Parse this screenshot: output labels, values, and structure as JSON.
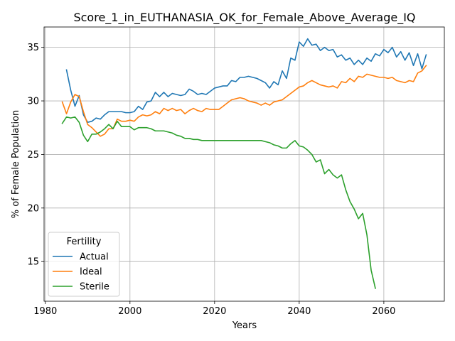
{
  "chart_data": {
    "type": "line",
    "title": "Score_1_in_EUTHANASIA_OK_for_Female_Above_Average_IQ",
    "xlabel": "Years",
    "ylabel": "% of Female Population",
    "xlim": [
      1979.7,
      2074.3
    ],
    "ylim": [
      11.3,
      36.9
    ],
    "x_ticks": [
      1980,
      2000,
      2020,
      2040,
      2060
    ],
    "y_ticks": [
      15,
      20,
      25,
      30,
      35
    ],
    "grid": true,
    "legend": {
      "title": "Fertility",
      "position": "lower-left"
    },
    "series": [
      {
        "name": "Actual",
        "color": "#1f77b4",
        "points": [
          [
            1985,
            32.9
          ],
          [
            1986,
            31.0
          ],
          [
            1987,
            29.5
          ],
          [
            1988,
            30.5
          ],
          [
            1989,
            28.7
          ],
          [
            1990,
            28.0
          ],
          [
            1991,
            28.1
          ],
          [
            1992,
            28.4
          ],
          [
            1993,
            28.3
          ],
          [
            1994,
            28.7
          ],
          [
            1995,
            29.0
          ],
          [
            1996,
            29.0
          ],
          [
            1997,
            29.0
          ],
          [
            1998,
            29.0
          ],
          [
            1999,
            28.9
          ],
          [
            2000,
            28.9
          ],
          [
            2001,
            29.0
          ],
          [
            2002,
            29.5
          ],
          [
            2003,
            29.2
          ],
          [
            2004,
            29.9
          ],
          [
            2005,
            30.0
          ],
          [
            2006,
            30.8
          ],
          [
            2007,
            30.4
          ],
          [
            2008,
            30.8
          ],
          [
            2009,
            30.4
          ],
          [
            2010,
            30.7
          ],
          [
            2011,
            30.6
          ],
          [
            2012,
            30.5
          ],
          [
            2013,
            30.6
          ],
          [
            2014,
            31.1
          ],
          [
            2015,
            30.9
          ],
          [
            2016,
            30.6
          ],
          [
            2017,
            30.7
          ],
          [
            2018,
            30.6
          ],
          [
            2019,
            30.9
          ],
          [
            2020,
            31.2
          ],
          [
            2021,
            31.3
          ],
          [
            2022,
            31.4
          ],
          [
            2023,
            31.4
          ],
          [
            2024,
            31.9
          ],
          [
            2025,
            31.8
          ],
          [
            2026,
            32.2
          ],
          [
            2027,
            32.2
          ],
          [
            2028,
            32.3
          ],
          [
            2029,
            32.2
          ],
          [
            2030,
            32.1
          ],
          [
            2031,
            31.9
          ],
          [
            2032,
            31.7
          ],
          [
            2033,
            31.2
          ],
          [
            2034,
            31.8
          ],
          [
            2035,
            31.5
          ],
          [
            2036,
            32.8
          ],
          [
            2037,
            32.1
          ],
          [
            2038,
            34.0
          ],
          [
            2039,
            33.8
          ],
          [
            2040,
            35.5
          ],
          [
            2041,
            35.1
          ],
          [
            2042,
            35.8
          ],
          [
            2043,
            35.2
          ],
          [
            2044,
            35.3
          ],
          [
            2045,
            34.7
          ],
          [
            2046,
            35.0
          ],
          [
            2047,
            34.7
          ],
          [
            2048,
            34.8
          ],
          [
            2049,
            34.1
          ],
          [
            2050,
            34.3
          ],
          [
            2051,
            33.8
          ],
          [
            2052,
            34.0
          ],
          [
            2053,
            33.4
          ],
          [
            2054,
            33.8
          ],
          [
            2055,
            33.4
          ],
          [
            2056,
            34.0
          ],
          [
            2057,
            33.7
          ],
          [
            2058,
            34.4
          ],
          [
            2059,
            34.2
          ],
          [
            2060,
            34.8
          ],
          [
            2061,
            34.5
          ],
          [
            2062,
            35.0
          ],
          [
            2063,
            34.1
          ],
          [
            2064,
            34.6
          ],
          [
            2065,
            33.8
          ],
          [
            2066,
            34.5
          ],
          [
            2067,
            33.3
          ],
          [
            2068,
            34.4
          ],
          [
            2069,
            33.0
          ],
          [
            2070,
            34.3
          ]
        ]
      },
      {
        "name": "Ideal",
        "color": "#ff7f0e",
        "points": [
          [
            1984,
            29.9
          ],
          [
            1985,
            28.8
          ],
          [
            1986,
            29.9
          ],
          [
            1987,
            30.6
          ],
          [
            1988,
            30.4
          ],
          [
            1989,
            29.0
          ],
          [
            1990,
            27.8
          ],
          [
            1991,
            27.5
          ],
          [
            1992,
            27.1
          ],
          [
            1993,
            26.7
          ],
          [
            1994,
            26.9
          ],
          [
            1995,
            27.4
          ],
          [
            1996,
            27.4
          ],
          [
            1997,
            28.3
          ],
          [
            1998,
            28.1
          ],
          [
            1999,
            28.1
          ],
          [
            2000,
            28.2
          ],
          [
            2001,
            28.1
          ],
          [
            2002,
            28.5
          ],
          [
            2003,
            28.7
          ],
          [
            2004,
            28.6
          ],
          [
            2005,
            28.7
          ],
          [
            2006,
            29.0
          ],
          [
            2007,
            28.8
          ],
          [
            2008,
            29.3
          ],
          [
            2009,
            29.1
          ],
          [
            2010,
            29.3
          ],
          [
            2011,
            29.1
          ],
          [
            2012,
            29.2
          ],
          [
            2013,
            28.8
          ],
          [
            2014,
            29.1
          ],
          [
            2015,
            29.3
          ],
          [
            2016,
            29.1
          ],
          [
            2017,
            29.0
          ],
          [
            2018,
            29.3
          ],
          [
            2019,
            29.2
          ],
          [
            2020,
            29.2
          ],
          [
            2021,
            29.2
          ],
          [
            2022,
            29.5
          ],
          [
            2023,
            29.8
          ],
          [
            2024,
            30.1
          ],
          [
            2025,
            30.2
          ],
          [
            2026,
            30.3
          ],
          [
            2027,
            30.2
          ],
          [
            2028,
            30.0
          ],
          [
            2029,
            29.9
          ],
          [
            2030,
            29.8
          ],
          [
            2031,
            29.6
          ],
          [
            2032,
            29.8
          ],
          [
            2033,
            29.6
          ],
          [
            2034,
            29.9
          ],
          [
            2035,
            30.0
          ],
          [
            2036,
            30.1
          ],
          [
            2037,
            30.4
          ],
          [
            2038,
            30.7
          ],
          [
            2039,
            31.0
          ],
          [
            2040,
            31.3
          ],
          [
            2041,
            31.4
          ],
          [
            2042,
            31.7
          ],
          [
            2043,
            31.9
          ],
          [
            2044,
            31.7
          ],
          [
            2045,
            31.5
          ],
          [
            2046,
            31.4
          ],
          [
            2047,
            31.3
          ],
          [
            2048,
            31.4
          ],
          [
            2049,
            31.2
          ],
          [
            2050,
            31.8
          ],
          [
            2051,
            31.7
          ],
          [
            2052,
            32.1
          ],
          [
            2053,
            31.8
          ],
          [
            2054,
            32.3
          ],
          [
            2055,
            32.2
          ],
          [
            2056,
            32.5
          ],
          [
            2057,
            32.4
          ],
          [
            2058,
            32.3
          ],
          [
            2059,
            32.2
          ],
          [
            2060,
            32.2
          ],
          [
            2061,
            32.1
          ],
          [
            2062,
            32.2
          ],
          [
            2063,
            31.9
          ],
          [
            2064,
            31.8
          ],
          [
            2065,
            31.7
          ],
          [
            2066,
            31.9
          ],
          [
            2067,
            31.8
          ],
          [
            2068,
            32.6
          ],
          [
            2069,
            32.8
          ],
          [
            2070,
            33.3
          ]
        ]
      },
      {
        "name": "Sterile",
        "color": "#2ca02c",
        "points": [
          [
            1984,
            27.9
          ],
          [
            1985,
            28.5
          ],
          [
            1986,
            28.4
          ],
          [
            1987,
            28.5
          ],
          [
            1988,
            28.0
          ],
          [
            1989,
            26.8
          ],
          [
            1990,
            26.2
          ],
          [
            1991,
            26.9
          ],
          [
            1992,
            26.9
          ],
          [
            1993,
            27.1
          ],
          [
            1994,
            27.4
          ],
          [
            1995,
            27.8
          ],
          [
            1996,
            27.4
          ],
          [
            1997,
            28.1
          ],
          [
            1998,
            27.6
          ],
          [
            1999,
            27.6
          ],
          [
            2000,
            27.6
          ],
          [
            2001,
            27.3
          ],
          [
            2002,
            27.5
          ],
          [
            2003,
            27.5
          ],
          [
            2004,
            27.5
          ],
          [
            2005,
            27.4
          ],
          [
            2006,
            27.2
          ],
          [
            2007,
            27.2
          ],
          [
            2008,
            27.2
          ],
          [
            2009,
            27.1
          ],
          [
            2010,
            27.0
          ],
          [
            2011,
            26.8
          ],
          [
            2012,
            26.7
          ],
          [
            2013,
            26.5
          ],
          [
            2014,
            26.5
          ],
          [
            2015,
            26.4
          ],
          [
            2016,
            26.4
          ],
          [
            2017,
            26.3
          ],
          [
            2018,
            26.3
          ],
          [
            2019,
            26.3
          ],
          [
            2020,
            26.3
          ],
          [
            2021,
            26.3
          ],
          [
            2022,
            26.3
          ],
          [
            2023,
            26.3
          ],
          [
            2024,
            26.3
          ],
          [
            2025,
            26.3
          ],
          [
            2026,
            26.3
          ],
          [
            2027,
            26.3
          ],
          [
            2028,
            26.3
          ],
          [
            2029,
            26.3
          ],
          [
            2030,
            26.3
          ],
          [
            2031,
            26.3
          ],
          [
            2032,
            26.2
          ],
          [
            2033,
            26.1
          ],
          [
            2034,
            25.9
          ],
          [
            2035,
            25.8
          ],
          [
            2036,
            25.6
          ],
          [
            2037,
            25.6
          ],
          [
            2038,
            26.0
          ],
          [
            2039,
            26.3
          ],
          [
            2040,
            25.8
          ],
          [
            2041,
            25.7
          ],
          [
            2042,
            25.4
          ],
          [
            2043,
            25.0
          ],
          [
            2044,
            24.3
          ],
          [
            2045,
            24.5
          ],
          [
            2046,
            23.2
          ],
          [
            2047,
            23.6
          ],
          [
            2048,
            23.1
          ],
          [
            2049,
            22.8
          ],
          [
            2050,
            23.1
          ],
          [
            2051,
            21.7
          ],
          [
            2052,
            20.6
          ],
          [
            2053,
            19.9
          ],
          [
            2054,
            19.0
          ],
          [
            2055,
            19.5
          ],
          [
            2056,
            17.5
          ],
          [
            2057,
            14.2
          ],
          [
            2058,
            12.5
          ]
        ]
      }
    ]
  }
}
